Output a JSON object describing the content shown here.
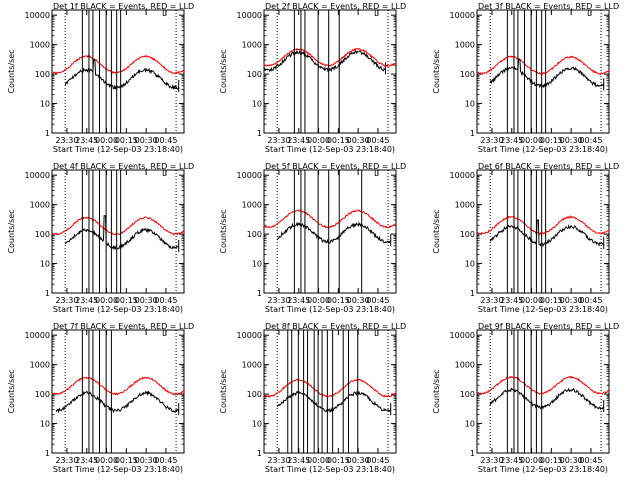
{
  "chart_data": {
    "type": "line",
    "ylabel": "Counts/sec",
    "xlabel": "Start Time (12-Sep-03 23:18:40)",
    "x_tick_labels": [
      "23:30",
      "23:45",
      "00:00",
      "00:15",
      "00:30",
      "00:45"
    ],
    "x_tick_minutes": [
      11.33,
      26.33,
      41.33,
      56.33,
      71.33,
      86.33
    ],
    "xlim_minutes": [
      0,
      100
    ],
    "y_scale": "log",
    "ylim": [
      1,
      15000
    ],
    "y_tick_values": [
      1,
      10,
      100,
      1000,
      10000
    ],
    "y_tick_labels": [
      "1",
      "10",
      "100",
      "1000",
      "10000"
    ],
    "legend": [
      "BLACK = Events",
      "RED = LLD"
    ],
    "colors": {
      "events": "#000000",
      "lld": "#ff0000"
    },
    "panels": [
      {
        "title": "Det 1f BLACK = Events, RED = LLD",
        "corner_label": "L",
        "dotted_lines_min": [
          10,
          94
        ],
        "solid_lines_min": [
          23,
          28,
          31,
          36,
          41,
          45,
          49,
          52
        ],
        "lld_base": 210,
        "events_base": 70,
        "events_start_min": 10,
        "events_end_min": 96,
        "spike_min": 32,
        "spike_value": 300
      },
      {
        "title": "Det 2f BLACK = Events, RED = LLD",
        "corner_label": "L",
        "dotted_lines_min": [
          10,
          94
        ],
        "solid_lines_min": [
          23,
          28,
          31,
          41,
          49,
          57
        ],
        "lld_base": 370,
        "events_base": 280,
        "events_start_min": 0,
        "events_end_min": 92,
        "spike_min": null,
        "spike_value": null
      },
      {
        "title": "Det 3f BLACK = Events, RED = LLD",
        "corner_label": "L",
        "dotted_lines_min": [
          10,
          94
        ],
        "solid_lines_min": [
          23,
          28,
          31,
          36,
          41,
          45,
          49,
          52
        ],
        "lld_base": 200,
        "events_base": 80,
        "events_start_min": 10,
        "events_end_min": 96,
        "spike_min": 32,
        "spike_value": 320
      },
      {
        "title": "Det 4f BLACK = Events, RED = LLD",
        "corner_label": "L",
        "dotted_lines_min": [
          10,
          94
        ],
        "solid_lines_min": [
          23,
          28,
          31,
          36,
          41,
          45,
          49,
          52
        ],
        "lld_base": 190,
        "events_base": 70,
        "events_start_min": 10,
        "events_end_min": 96,
        "spike_min": 40,
        "spike_value": 420
      },
      {
        "title": "Det 5f BLACK = Events, RED = LLD",
        "corner_label": "L",
        "dotted_lines_min": [
          10,
          94
        ],
        "solid_lines_min": [
          23,
          28,
          31,
          41,
          49,
          57,
          74
        ],
        "lld_base": 330,
        "events_base": 110,
        "events_start_min": 10,
        "events_end_min": 96,
        "spike_min": null,
        "spike_value": null
      },
      {
        "title": "Det 6f BLACK = Events, RED = LLD",
        "corner_label": "L",
        "dotted_lines_min": [
          10,
          94
        ],
        "solid_lines_min": [
          23,
          28,
          31,
          36,
          41,
          45,
          49,
          52
        ],
        "lld_base": 200,
        "events_base": 90,
        "events_start_min": 10,
        "events_end_min": 96,
        "spike_min": 46,
        "spike_value": 300
      },
      {
        "title": "Det 7f BLACK = Events, RED = LLD",
        "corner_label": "L",
        "dotted_lines_min": [
          10,
          94
        ],
        "solid_lines_min": [
          23,
          28,
          31,
          36,
          41,
          45
        ],
        "lld_base": 190,
        "events_base": 55,
        "events_start_min": 3,
        "events_end_min": 96,
        "spike_min": null,
        "spike_value": null
      },
      {
        "title": "Det 8f BLACK = Events, RED = LLD",
        "corner_label": "L",
        "dotted_lines_min": [
          10,
          94
        ],
        "solid_lines_min": [
          18,
          21,
          26,
          30,
          33,
          38,
          41,
          44,
          48,
          52,
          60,
          64,
          71
        ],
        "lld_base": 160,
        "events_base": 55,
        "events_start_min": 10,
        "events_end_min": 96,
        "spike_min": null,
        "spike_value": null
      },
      {
        "title": "Det 9f BLACK = Events, RED = LLD",
        "corner_label": "L",
        "dotted_lines_min": [
          10,
          94
        ],
        "solid_lines_min": [
          23,
          28,
          31,
          36,
          41,
          45,
          49
        ],
        "lld_base": 200,
        "events_base": 70,
        "events_start_min": 10,
        "events_end_min": 96,
        "spike_min": null,
        "spike_value": null
      }
    ]
  }
}
